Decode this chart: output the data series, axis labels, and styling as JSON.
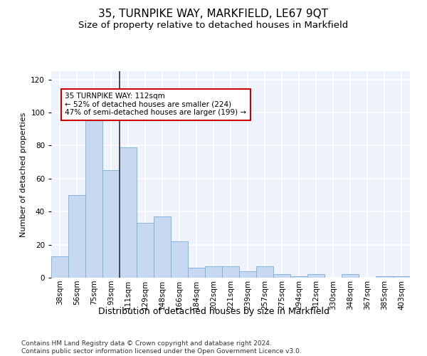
{
  "title1": "35, TURNPIKE WAY, MARKFIELD, LE67 9QT",
  "title2": "Size of property relative to detached houses in Markfield",
  "xlabel": "Distribution of detached houses by size in Markfield",
  "ylabel": "Number of detached properties",
  "categories": [
    "38sqm",
    "56sqm",
    "75sqm",
    "93sqm",
    "111sqm",
    "129sqm",
    "148sqm",
    "166sqm",
    "184sqm",
    "202sqm",
    "221sqm",
    "239sqm",
    "257sqm",
    "275sqm",
    "294sqm",
    "312sqm",
    "330sqm",
    "348sqm",
    "367sqm",
    "385sqm",
    "403sqm"
  ],
  "values": [
    13,
    50,
    97,
    65,
    79,
    33,
    37,
    22,
    6,
    7,
    7,
    4,
    7,
    2,
    1,
    2,
    0,
    2,
    0,
    1,
    1
  ],
  "bar_color": "#c6d9f0",
  "bar_edge_color": "#7aaddb",
  "annotation_text": "35 TURNPIKE WAY: 112sqm\n← 52% of detached houses are smaller (224)\n47% of semi-detached houses are larger (199) →",
  "annotation_box_color": "white",
  "annotation_box_edge_color": "#cc0000",
  "vline_color": "#333333",
  "vline_x_index": 3.5,
  "ylim": [
    0,
    125
  ],
  "yticks": [
    0,
    20,
    40,
    60,
    80,
    100,
    120
  ],
  "background_color": "#eef2fb",
  "grid_color": "white",
  "footer": "Contains HM Land Registry data © Crown copyright and database right 2024.\nContains public sector information licensed under the Open Government Licence v3.0.",
  "title1_fontsize": 11,
  "title2_fontsize": 9.5,
  "xlabel_fontsize": 9,
  "ylabel_fontsize": 8,
  "tick_fontsize": 7.5,
  "annotation_fontsize": 7.5,
  "footer_fontsize": 6.5
}
